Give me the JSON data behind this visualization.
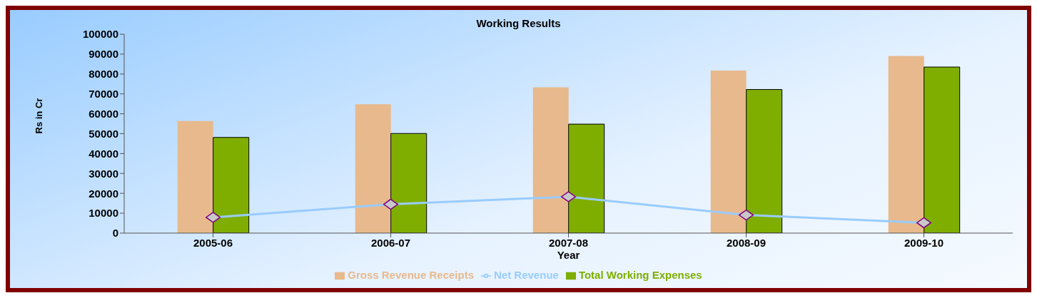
{
  "chart_data": {
    "type": "bar",
    "title": "Working Results",
    "xlabel": "Year",
    "ylabel": "Rs in Cr",
    "categories": [
      "2005-06",
      "2006-07",
      "2007-08",
      "2008-09",
      "2009-10"
    ],
    "series": [
      {
        "name": "Gross Revenue Receipts",
        "color": "#e8b98c",
        "values": [
          56400,
          64800,
          73300,
          81700,
          89100
        ]
      },
      {
        "name": "Total Working Expenses",
        "color": "#7fae00",
        "values": [
          48100,
          50100,
          54800,
          72200,
          83500
        ]
      },
      {
        "name": "Net Revenue",
        "type": "line",
        "color": "#99ccff",
        "values": [
          7900,
          14500,
          18300,
          9100,
          5200
        ]
      }
    ],
    "ylim": [
      0,
      100000
    ],
    "yticks": [
      0,
      10000,
      20000,
      30000,
      40000,
      50000,
      60000,
      70000,
      80000,
      90000,
      100000
    ],
    "grid": false,
    "legend": "bottom",
    "marker": "diamond",
    "line_style": "solid"
  }
}
